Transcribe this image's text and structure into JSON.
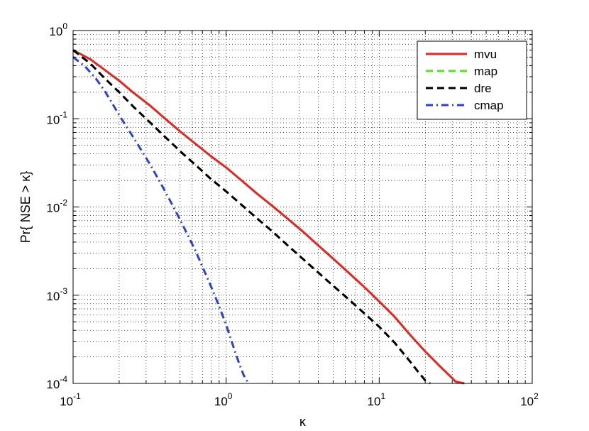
{
  "chart_data": {
    "type": "line",
    "title": "",
    "xlabel": "κ",
    "ylabel": "Pr{ NSE > κ}",
    "xscale": "log",
    "yscale": "log",
    "xlim": [
      0.1,
      100
    ],
    "ylim": [
      0.0001,
      1
    ],
    "grid": true,
    "grid_style": "dotted",
    "grid_minor": true,
    "legend_position": "top-right",
    "x_ticks": [
      {
        "base": "10",
        "exp": "-1",
        "value": 0.1
      },
      {
        "base": "10",
        "exp": "0",
        "value": 1
      },
      {
        "base": "10",
        "exp": "1",
        "value": 10
      },
      {
        "base": "10",
        "exp": "2",
        "value": 100
      }
    ],
    "y_ticks": [
      {
        "base": "10",
        "exp": "0",
        "value": 1
      },
      {
        "base": "10",
        "exp": "-1",
        "value": 0.1
      },
      {
        "base": "10",
        "exp": "-2",
        "value": 0.01
      },
      {
        "base": "10",
        "exp": "-3",
        "value": 0.001
      },
      {
        "base": "10",
        "exp": "-4",
        "value": 0.0001
      }
    ],
    "series": [
      {
        "name": "mvu",
        "color": "#e8241d",
        "style": "solid",
        "x": [
          0.1,
          0.13,
          0.16,
          0.2,
          0.25,
          0.32,
          0.4,
          0.5,
          0.63,
          0.79,
          1.0,
          1.26,
          1.58,
          2.0,
          2.51,
          3.16,
          3.98,
          5.0,
          6.31,
          7.94,
          10.0,
          12.6,
          15.8,
          20.0,
          25.1,
          31.6,
          36.0
        ],
        "y": [
          0.6,
          0.47,
          0.36,
          0.27,
          0.195,
          0.14,
          0.1,
          0.072,
          0.052,
          0.038,
          0.028,
          0.02,
          0.0143,
          0.0103,
          0.0074,
          0.0053,
          0.0037,
          0.0026,
          0.0018,
          0.00125,
          0.00085,
          0.00057,
          0.00036,
          0.00023,
          0.000155,
          0.000105,
          0.0001
        ]
      },
      {
        "name": "map",
        "color": "#55e21f",
        "style": "dashed",
        "x": [
          0.1,
          0.13,
          0.16,
          0.2,
          0.25,
          0.32,
          0.4,
          0.5,
          0.63,
          0.79,
          1.0,
          1.26,
          1.58,
          2.0,
          2.51,
          3.16,
          3.98,
          5.0,
          6.31,
          7.94,
          10.0,
          12.6,
          15.8,
          18.0,
          20.0,
          21.5
        ],
        "y": [
          0.6,
          0.42,
          0.29,
          0.2,
          0.135,
          0.09,
          0.062,
          0.043,
          0.03,
          0.021,
          0.015,
          0.0106,
          0.0075,
          0.0053,
          0.0037,
          0.0026,
          0.00182,
          0.00128,
          0.0009,
          0.00063,
          0.00044,
          0.00029,
          0.00018,
          0.000135,
          0.000108,
          0.0001
        ]
      },
      {
        "name": "dre",
        "color": "#000000",
        "style": "dashed",
        "x": [
          0.1,
          0.13,
          0.16,
          0.2,
          0.25,
          0.32,
          0.4,
          0.5,
          0.63,
          0.79,
          1.0,
          1.26,
          1.58,
          2.0,
          2.51,
          3.16,
          3.98,
          5.0,
          6.31,
          7.94,
          10.0,
          12.6,
          15.8,
          18.0,
          20.0,
          21.5
        ],
        "y": [
          0.6,
          0.42,
          0.29,
          0.2,
          0.135,
          0.09,
          0.062,
          0.043,
          0.03,
          0.021,
          0.015,
          0.0106,
          0.0075,
          0.0053,
          0.0037,
          0.0026,
          0.00182,
          0.00128,
          0.0009,
          0.00063,
          0.00044,
          0.00029,
          0.00018,
          0.000135,
          0.000108,
          0.0001
        ]
      },
      {
        "name": "cmap",
        "color": "#2b3fe0",
        "style": "dashdot",
        "x": [
          0.1,
          0.12,
          0.14,
          0.16,
          0.18,
          0.2,
          0.25,
          0.32,
          0.4,
          0.5,
          0.63,
          0.79,
          0.9,
          1.0,
          1.1,
          1.2,
          1.3,
          1.4
        ],
        "y": [
          0.5,
          0.39,
          0.29,
          0.21,
          0.15,
          0.11,
          0.06,
          0.03,
          0.015,
          0.0072,
          0.0032,
          0.0013,
          0.00075,
          0.00046,
          0.00028,
          0.00018,
          0.000125,
          0.0001
        ]
      }
    ]
  }
}
